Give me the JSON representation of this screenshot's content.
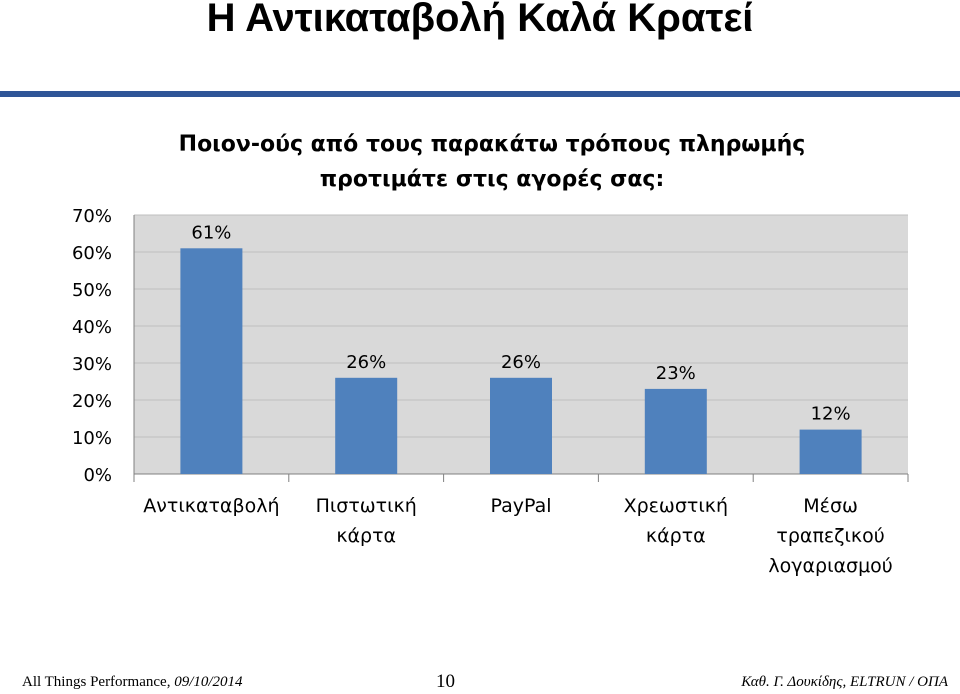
{
  "slide": {
    "title": "Η Αντικαταβολή Καλά Κρατεί"
  },
  "chart_data": {
    "type": "bar",
    "title_line1": "Ποιον-ούς από τους παρακάτω τρόπους πληρωμής",
    "title_line2": "προτιμάτε στις αγορές σας:",
    "categories": [
      [
        "Αντικαταβολή"
      ],
      [
        "Πιστωτική",
        "κάρτα"
      ],
      [
        "PayPal"
      ],
      [
        "Χρεωστική",
        "κάρτα"
      ],
      [
        "Μέσω",
        "τραπεζικού",
        "λογαριασμού"
      ]
    ],
    "values": [
      61,
      26,
      26,
      23,
      12
    ],
    "data_labels": [
      "61%",
      "26%",
      "26%",
      "23%",
      "12%"
    ],
    "ylim": [
      0,
      70
    ],
    "yticks": [
      "0%",
      "10%",
      "20%",
      "30%",
      "40%",
      "50%",
      "60%",
      "70%"
    ],
    "grid": true,
    "bar_color": "#4f81bd",
    "plot_background": "#d9d9d9"
  },
  "footer": {
    "left_prefix": "All Things Performance, ",
    "left_date": "09/10/2014",
    "page_number": "10",
    "right": "Καθ. Γ. Δουκίδης, ELTRUN / ΟΠΑ"
  }
}
